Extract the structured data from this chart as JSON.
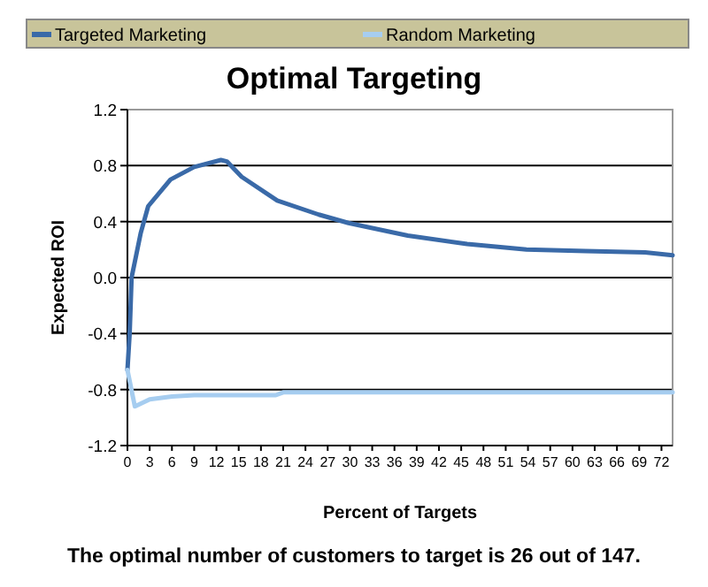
{
  "chart_data": {
    "type": "line",
    "title": "Optimal Targeting",
    "xlabel": "Percent of Targets",
    "ylabel": "Expected ROI",
    "xlim": [
      0,
      73.5
    ],
    "xticks": [
      0,
      3,
      6,
      9,
      12,
      15,
      18,
      21,
      24,
      27,
      30,
      33,
      36,
      39,
      42,
      45,
      48,
      51,
      54,
      57,
      60,
      63,
      66,
      69,
      72
    ],
    "ylim": [
      -1.2,
      1.2
    ],
    "yticks": [
      {
        "value": -1.2,
        "label": "-1.2"
      },
      {
        "value": -0.8,
        "label": "-0.8"
      },
      {
        "value": -0.4,
        "label": "-0.4"
      },
      {
        "value": 0,
        "label": "0.0"
      },
      {
        "value": 0.4,
        "label": "0.4"
      },
      {
        "value": 0.8,
        "label": "0.8"
      },
      {
        "value": 1.2,
        "label": "1.2"
      }
    ],
    "grid": "y",
    "legend": "top",
    "marker": "none",
    "line_style": "solid",
    "series": [
      {
        "name": "Targeted Marketing",
        "color": "#3a6aa8",
        "x": [
          0,
          0.3,
          0.56,
          1.8,
          2.8,
          5.8,
          9,
          12.6,
          13.4,
          15.4,
          20.2,
          25.8,
          29.8,
          37.8,
          45.8,
          53.8,
          61.8,
          69.8,
          73.5
        ],
        "values": [
          -0.66,
          -0.4,
          0,
          0.32,
          0.51,
          0.7,
          0.79,
          0.84,
          0.83,
          0.72,
          0.55,
          0.45,
          0.39,
          0.3,
          0.24,
          0.2,
          0.19,
          0.18,
          0.16
        ]
      },
      {
        "name": "Random Marketing",
        "color": "#a6cdf0",
        "x": [
          0,
          1,
          3,
          6,
          9,
          20,
          21,
          73.5
        ],
        "values": [
          -0.66,
          -0.92,
          -0.87,
          -0.85,
          -0.84,
          -0.84,
          -0.82,
          -0.82
        ]
      }
    ],
    "annotations": [
      "The optimal number of customers to target is 26 out of 147."
    ]
  }
}
